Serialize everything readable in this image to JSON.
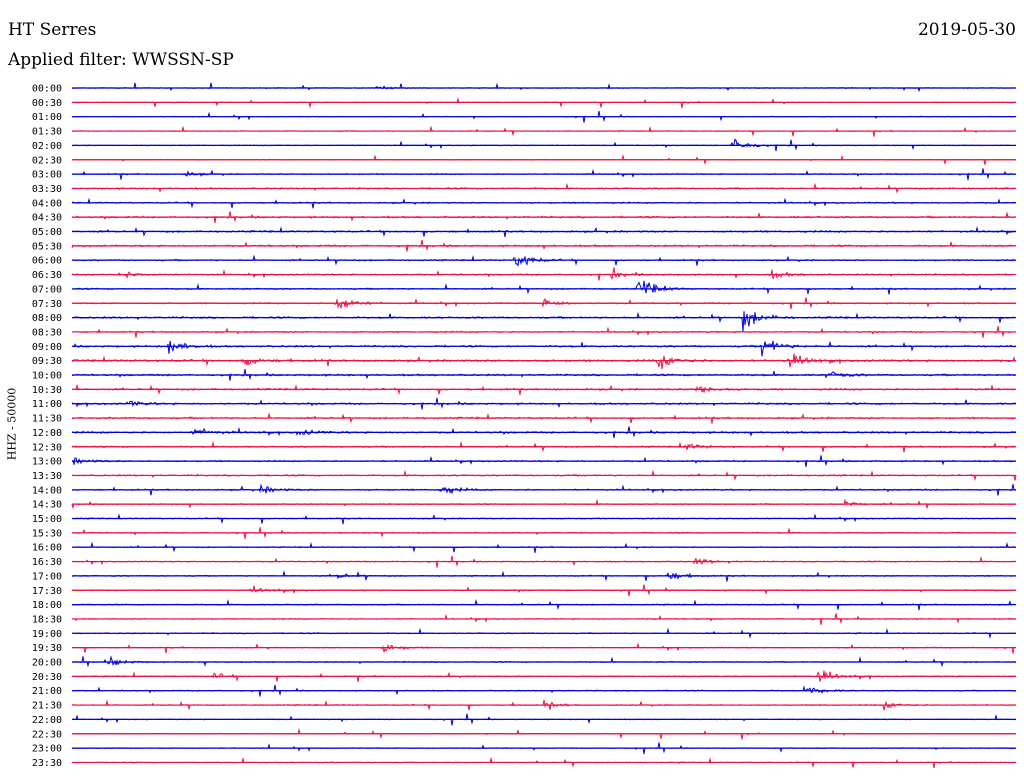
{
  "header": {
    "station": "HT Serres",
    "filter": "Applied filter: WWSSN-SP",
    "date": "2019-05-30"
  },
  "colors": {
    "trace_a": "#0000dd",
    "trace_b": "#ee1144"
  },
  "chart_data": {
    "type": "line",
    "title": "HT Serres",
    "subtitle": "Applied filter: WWSSN-SP",
    "date": "2019-05-30",
    "ylabel": "HHZ - 50000",
    "row_interval_minutes": 30,
    "row_labels": [
      "00:00",
      "00:30",
      "01:00",
      "01:30",
      "02:00",
      "02:30",
      "03:00",
      "03:30",
      "04:00",
      "04:30",
      "05:00",
      "05:30",
      "06:00",
      "06:30",
      "07:00",
      "07:30",
      "08:00",
      "08:30",
      "09:00",
      "09:30",
      "10:00",
      "10:30",
      "11:00",
      "11:30",
      "12:00",
      "12:30",
      "13:00",
      "13:30",
      "14:00",
      "14:30",
      "15:00",
      "15:30",
      "16:00",
      "16:30",
      "17:00",
      "17:30",
      "18:00",
      "18:30",
      "19:00",
      "19:30",
      "20:00",
      "20:30",
      "21:00",
      "21:30",
      "22:00",
      "22:30",
      "23:00",
      "23:30"
    ],
    "row_colors": [
      "blue",
      "red"
    ],
    "noise_level": [
      1,
      1,
      1,
      1,
      1,
      1,
      1.5,
      2,
      2,
      2.5,
      2.5,
      2.5,
      2,
      2,
      2,
      2,
      2.5,
      2,
      2.5,
      3,
      2.5,
      2.5,
      2.5,
      2.5,
      2.5,
      2,
      2,
      2,
      2,
      1.5,
      1.5,
      1.5,
      1.5,
      1.5,
      1.5,
      1.5,
      1.5,
      1.5,
      1.5,
      1.5,
      1.5,
      1.5,
      1.5,
      1.5,
      1,
      1,
      1,
      1
    ],
    "events": [
      {
        "row": 0,
        "t": 0.32,
        "amp": 4
      },
      {
        "row": 4,
        "t": 0.7,
        "amp": 16
      },
      {
        "row": 6,
        "t": 0.12,
        "amp": 4
      },
      {
        "row": 12,
        "t": 0.47,
        "amp": 14
      },
      {
        "row": 13,
        "t": 0.05,
        "amp": 8
      },
      {
        "row": 13,
        "t": 0.57,
        "amp": 6
      },
      {
        "row": 13,
        "t": 0.74,
        "amp": 7
      },
      {
        "row": 14,
        "t": 0.6,
        "amp": 20
      },
      {
        "row": 15,
        "t": 0.28,
        "amp": 18
      },
      {
        "row": 15,
        "t": 0.5,
        "amp": 8
      },
      {
        "row": 16,
        "t": 0.71,
        "amp": 22
      },
      {
        "row": 18,
        "t": 0.1,
        "amp": 16
      },
      {
        "row": 18,
        "t": 0.73,
        "amp": 20
      },
      {
        "row": 19,
        "t": 0.18,
        "amp": 10
      },
      {
        "row": 19,
        "t": 0.62,
        "amp": 16
      },
      {
        "row": 19,
        "t": 0.76,
        "amp": 12
      },
      {
        "row": 20,
        "t": 0.8,
        "amp": 8
      },
      {
        "row": 21,
        "t": 0.66,
        "amp": 12
      },
      {
        "row": 22,
        "t": 0.06,
        "amp": 5
      },
      {
        "row": 24,
        "t": 0.13,
        "amp": 8
      },
      {
        "row": 24,
        "t": 0.24,
        "amp": 6
      },
      {
        "row": 25,
        "t": 0.65,
        "amp": 6
      },
      {
        "row": 26,
        "t": 0.0,
        "amp": 6
      },
      {
        "row": 28,
        "t": 0.2,
        "amp": 7
      },
      {
        "row": 28,
        "t": 0.39,
        "amp": 9
      },
      {
        "row": 29,
        "t": 0.82,
        "amp": 5
      },
      {
        "row": 33,
        "t": 0.66,
        "amp": 6
      },
      {
        "row": 34,
        "t": 0.63,
        "amp": 9
      },
      {
        "row": 34,
        "t": 0.28,
        "amp": 5
      },
      {
        "row": 35,
        "t": 0.19,
        "amp": 5
      },
      {
        "row": 39,
        "t": 0.33,
        "amp": 8
      },
      {
        "row": 40,
        "t": 0.04,
        "amp": 7
      },
      {
        "row": 41,
        "t": 0.15,
        "amp": 5
      },
      {
        "row": 41,
        "t": 0.79,
        "amp": 12
      },
      {
        "row": 42,
        "t": 0.78,
        "amp": 9
      },
      {
        "row": 43,
        "t": 0.5,
        "amp": 6
      },
      {
        "row": 43,
        "t": 0.86,
        "amp": 7
      }
    ]
  }
}
